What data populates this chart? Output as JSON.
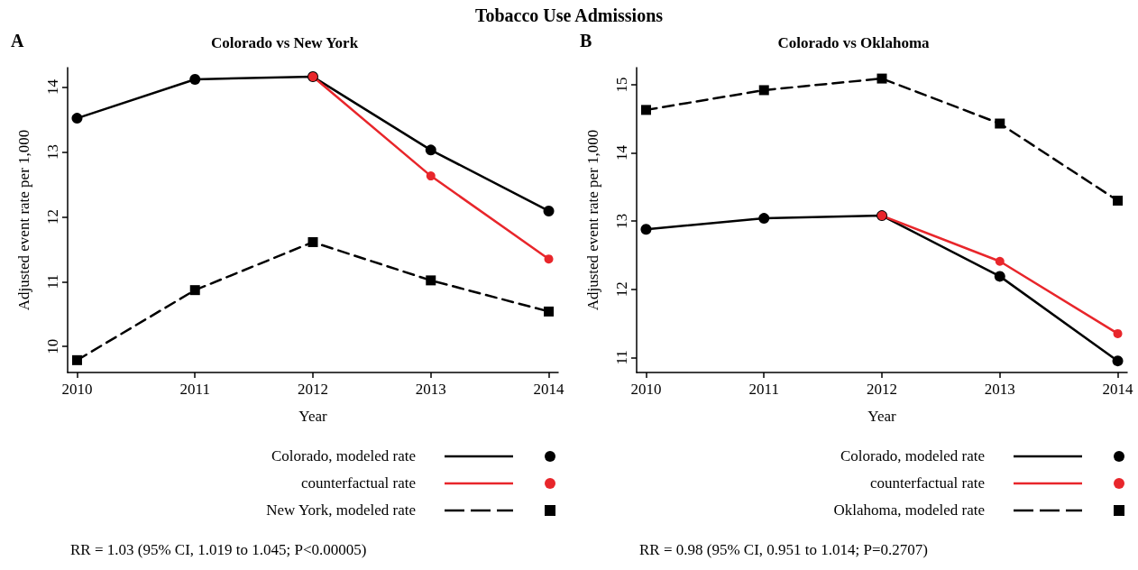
{
  "chart_data": [
    {
      "type": "line",
      "title": "Colorado vs New York",
      "xlabel": "Year",
      "ylabel": "Adjusted event rate per 1,000",
      "x": [
        2010,
        2011,
        2012,
        2013,
        2014
      ],
      "xlim": [
        2009.92,
        2014.08
      ],
      "xticks": [
        2010,
        2011,
        2012,
        2013,
        2014
      ],
      "ylim": [
        9.6,
        14.3
      ],
      "yticks": [
        10,
        11,
        12,
        13,
        14
      ],
      "grid": false,
      "legend": "bottom right",
      "series": [
        {
          "name": "Colorado, modeled rate",
          "color": "#000000",
          "values": [
            13.52,
            14.12,
            14.16,
            13.03,
            12.09
          ],
          "marker": "circle",
          "line_style": "solid"
        },
        {
          "name": "counterfactual rate",
          "color": "#e8262b",
          "values": [
            null,
            null,
            14.16,
            12.63,
            11.35
          ],
          "marker": "circle",
          "line_style": "solid"
        },
        {
          "name": "New York, modeled rate",
          "color": "#000000",
          "values": [
            9.79,
            10.87,
            11.61,
            11.02,
            10.54
          ],
          "marker": "square",
          "line_style": "dashed"
        }
      ],
      "annotations": [
        "A",
        "RR = 1.03 (95% CI, 1.019 to 1.045; P<0.00005)",
        "Tobacco Use Admissions"
      ]
    },
    {
      "type": "line",
      "title": "Colorado vs Oklahoma",
      "xlabel": "Year",
      "ylabel": "Adjusted event rate per 1,000",
      "x": [
        2010,
        2011,
        2012,
        2013,
        2014
      ],
      "xlim": [
        2009.92,
        2014.08
      ],
      "xticks": [
        2010,
        2011,
        2012,
        2013,
        2014
      ],
      "ylim": [
        10.78,
        15.25
      ],
      "yticks": [
        11,
        12,
        13,
        14,
        15
      ],
      "grid": false,
      "legend": "bottom right",
      "series": [
        {
          "name": "Colorado, modeled rate",
          "color": "#000000",
          "values": [
            12.88,
            13.04,
            13.08,
            12.19,
            10.95
          ],
          "marker": "circle",
          "line_style": "solid"
        },
        {
          "name": "counterfactual rate",
          "color": "#e8262b",
          "values": [
            null,
            null,
            13.08,
            12.41,
            11.35
          ],
          "marker": "circle",
          "line_style": "solid"
        },
        {
          "name": "Oklahoma, modeled rate",
          "color": "#000000",
          "values": [
            14.63,
            14.92,
            15.09,
            14.43,
            13.3
          ],
          "marker": "square",
          "line_style": "dashed"
        }
      ],
      "annotations": [
        "B",
        "RR = 0.98 (95% CI, 0.951 to 1.014; P=0.2707)"
      ]
    }
  ]
}
